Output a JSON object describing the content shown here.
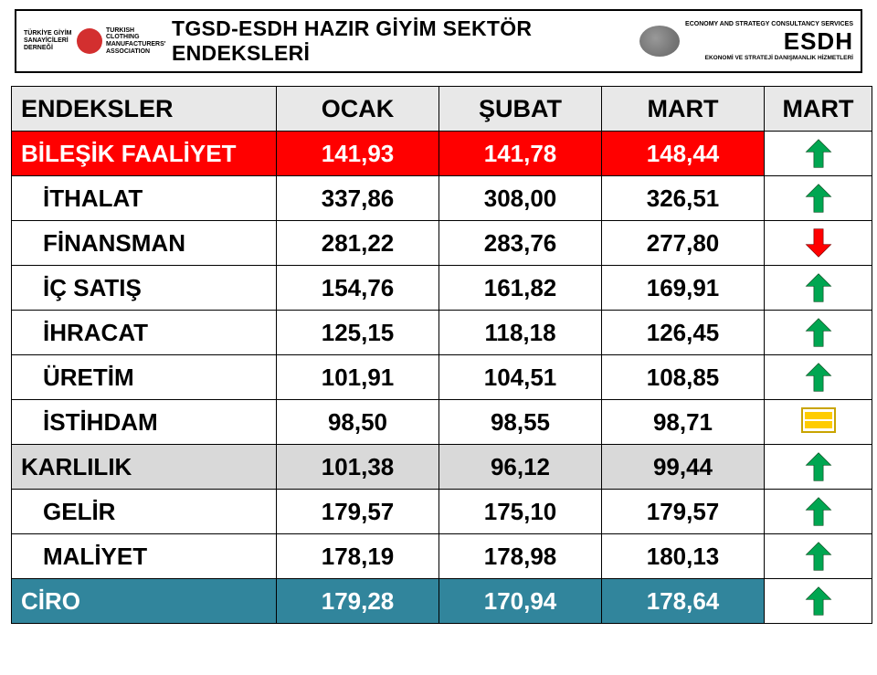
{
  "header": {
    "title": "TGSD-ESDH HAZIR GİYİM SEKTÖR ENDEKSLERİ",
    "left_logo": {
      "line1_tr": "TÜRKİYE GİYİM SANAYİCİLERİ DERNEĞİ",
      "line1_en": "TURKISH CLOTHING MANUFACTURERS' ASSOCIATION"
    },
    "right_logo": {
      "top": "ECONOMY AND STRATEGY CONSULTANCY SERVICES",
      "brand": "ESDH",
      "bottom": "EKONOMİ VE STRATEJİ DANIŞMANLIK HİZMETLERİ"
    }
  },
  "table": {
    "columns": [
      "ENDEKSLER",
      "OCAK",
      "ŞUBAT",
      "MART",
      "MART"
    ],
    "rows": [
      {
        "name": "BİLEŞİK FAALİYET",
        "v": [
          "141,93",
          "141,78",
          "148,44"
        ],
        "row_style": "red",
        "trend": "up",
        "indent": false
      },
      {
        "name": "İTHALAT",
        "v": [
          "337,86",
          "308,00",
          "326,51"
        ],
        "row_style": "",
        "trend": "up",
        "indent": true
      },
      {
        "name": "FİNANSMAN",
        "v": [
          "281,22",
          "283,76",
          "277,80"
        ],
        "row_style": "",
        "trend": "down",
        "indent": true
      },
      {
        "name": "İÇ SATIŞ",
        "v": [
          "154,76",
          "161,82",
          "169,91"
        ],
        "row_style": "",
        "trend": "up",
        "indent": true
      },
      {
        "name": "İHRACAT",
        "v": [
          "125,15",
          "118,18",
          "126,45"
        ],
        "row_style": "",
        "trend": "up",
        "indent": true
      },
      {
        "name": "ÜRETİM",
        "v": [
          "101,91",
          "104,51",
          "108,85"
        ],
        "row_style": "",
        "trend": "up",
        "indent": true
      },
      {
        "name": "İSTİHDAM",
        "v": [
          "98,50",
          "98,55",
          "98,71"
        ],
        "row_style": "",
        "trend": "flat",
        "indent": true
      },
      {
        "name": "KARLILIK",
        "v": [
          "101,38",
          "96,12",
          "99,44"
        ],
        "row_style": "gray",
        "trend": "up",
        "indent": false
      },
      {
        "name": "GELİR",
        "v": [
          "179,57",
          "175,10",
          "179,57"
        ],
        "row_style": "",
        "trend": "up",
        "indent": true
      },
      {
        "name": "MALİYET",
        "v": [
          "178,19",
          "178,98",
          "180,13"
        ],
        "row_style": "",
        "trend": "up",
        "indent": true
      },
      {
        "name": "CİRO",
        "v": [
          "179,28",
          "170,94",
          "178,64"
        ],
        "row_style": "teal",
        "trend": "up",
        "indent": false
      }
    ],
    "trend_colors": {
      "up": "#00a651",
      "down": "#ff0000",
      "flat_fill": "#ffcc00",
      "flat_border": "#c9a400"
    },
    "row_bg": {
      "red": "#ff0000",
      "gray": "#d9d9d9",
      "teal": "#31859c",
      "header": "#e8e8e8",
      "default": "#ffffff"
    }
  }
}
